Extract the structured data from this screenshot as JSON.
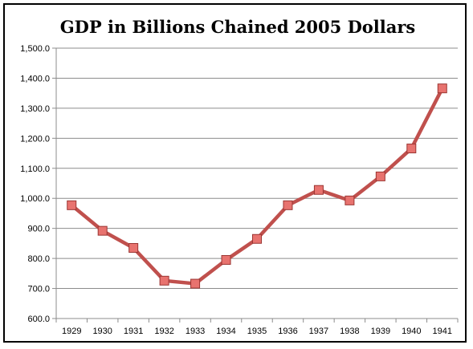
{
  "chart_data": {
    "type": "line",
    "title": "GDP in Billions Chained 2005 Dollars",
    "xlabel": "",
    "ylabel": "",
    "categories": [
      "1929",
      "1930",
      "1931",
      "1932",
      "1933",
      "1934",
      "1935",
      "1936",
      "1937",
      "1938",
      "1939",
      "1940",
      "1941"
    ],
    "series": [
      {
        "values": [
          977,
          892,
          835,
          726,
          716,
          795,
          865,
          977,
          1028,
          993,
          1073,
          1166,
          1366
        ]
      }
    ],
    "ylim": [
      600,
      1500
    ],
    "yticks": [
      600,
      700,
      800,
      900,
      1000,
      1100,
      1200,
      1300,
      1400,
      1500
    ],
    "ytick_labels": [
      "600.0",
      "700.0",
      "800.0",
      "900.0",
      "1,000.0",
      "1,100.0",
      "1,200.0",
      "1,300.0",
      "1,400.0",
      "1,500.0"
    ],
    "grid": true,
    "legend": "none",
    "line_color": "#C0504D",
    "marker_color": "#E8736F",
    "marker": "square"
  }
}
